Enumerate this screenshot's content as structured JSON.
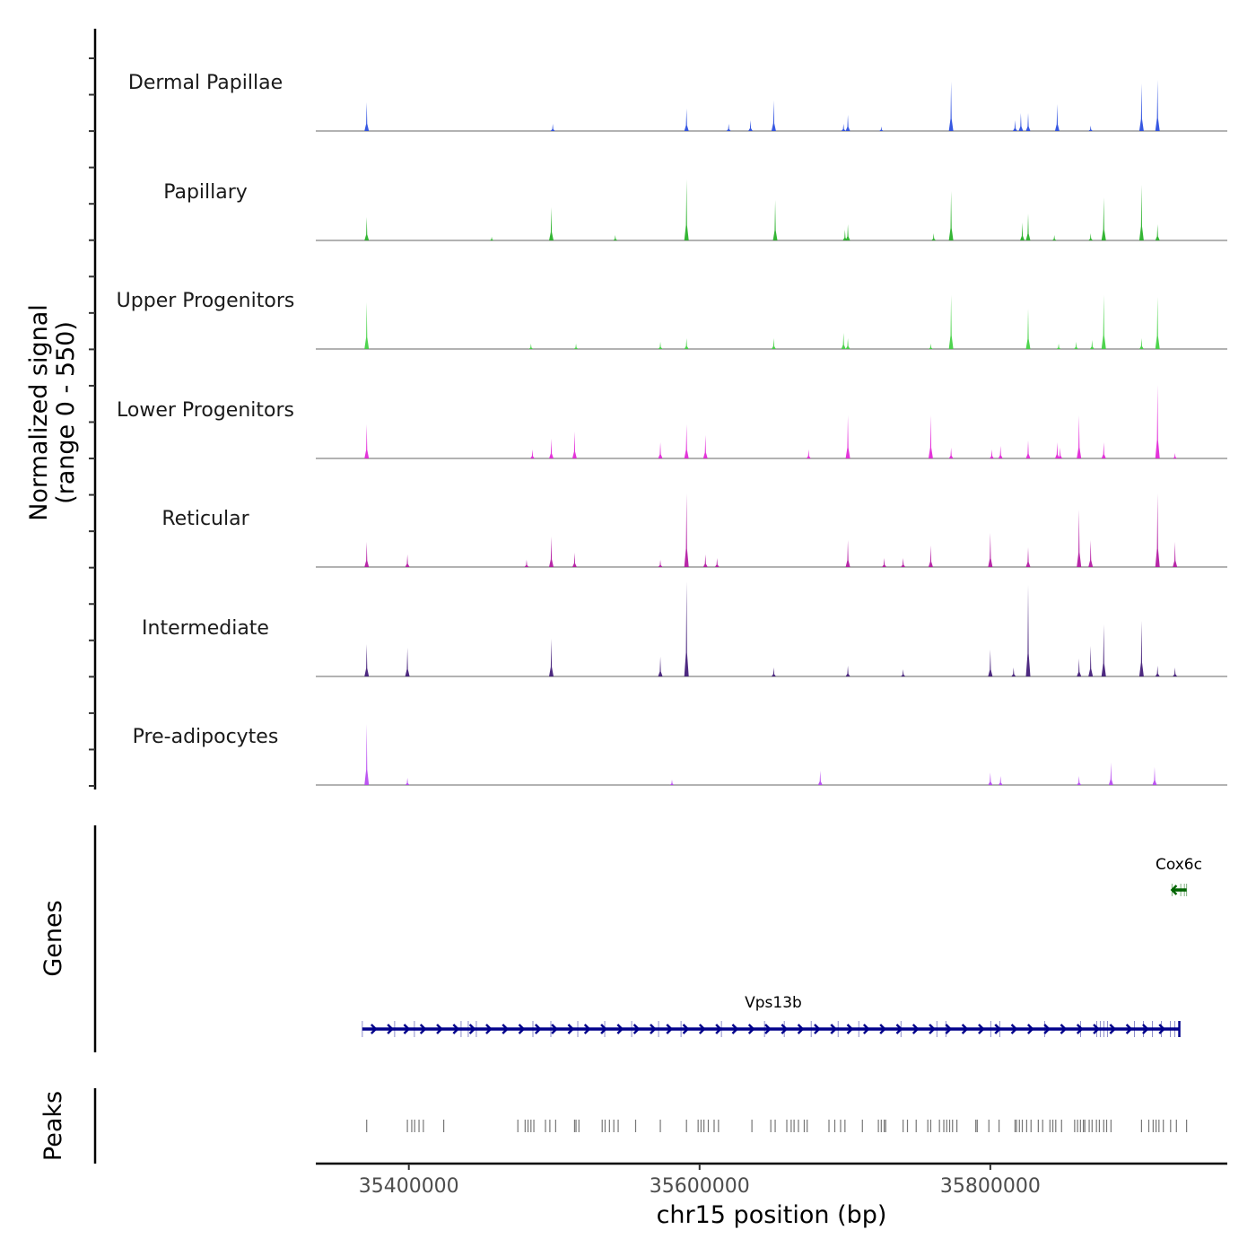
{
  "chart_data": {
    "type": "area",
    "title": "",
    "ylabel_line1": "Normalized signal",
    "ylabel_line2": "(range 0 - 550)",
    "xlabel": "chr15 position (bp)",
    "xlim": [
      35336000,
      35963000
    ],
    "ylim": [
      0,
      550
    ],
    "x_ticks": [
      35400000,
      35600000,
      35800000
    ],
    "x_tick_labels": [
      "35400000",
      "35600000",
      "35800000"
    ],
    "grid": false,
    "tracks": [
      {
        "name": "Dermal Papillae",
        "color": "#2146df",
        "peaks": [
          [
            35371000,
            160
          ],
          [
            35499000,
            40
          ],
          [
            35591000,
            125
          ],
          [
            35620000,
            40
          ],
          [
            35635000,
            60
          ],
          [
            35651000,
            170
          ],
          [
            35699000,
            40
          ],
          [
            35702000,
            90
          ],
          [
            35725000,
            25
          ],
          [
            35773000,
            275
          ],
          [
            35817000,
            60
          ],
          [
            35821000,
            100
          ],
          [
            35826000,
            100
          ],
          [
            35846000,
            150
          ],
          [
            35869000,
            30
          ],
          [
            35904000,
            265
          ],
          [
            35915000,
            285
          ]
        ]
      },
      {
        "name": "Papillary",
        "color": "#1fae1f",
        "peaks": [
          [
            35371000,
            130
          ],
          [
            35457000,
            20
          ],
          [
            35498000,
            185
          ],
          [
            35542000,
            30
          ],
          [
            35591000,
            340
          ],
          [
            35652000,
            225
          ],
          [
            35700000,
            60
          ],
          [
            35702000,
            90
          ],
          [
            35761000,
            40
          ],
          [
            35773000,
            275
          ],
          [
            35822000,
            100
          ],
          [
            35826000,
            150
          ],
          [
            35844000,
            30
          ],
          [
            35869000,
            40
          ],
          [
            35878000,
            240
          ],
          [
            35904000,
            310
          ],
          [
            35915000,
            90
          ]
        ]
      },
      {
        "name": "Upper Progenitors",
        "color": "#3ccf3c",
        "peaks": [
          [
            35371000,
            260
          ],
          [
            35484000,
            30
          ],
          [
            35515000,
            30
          ],
          [
            35573000,
            40
          ],
          [
            35591000,
            60
          ],
          [
            35651000,
            60
          ],
          [
            35699000,
            90
          ],
          [
            35702000,
            60
          ],
          [
            35759000,
            30
          ],
          [
            35773000,
            300
          ],
          [
            35826000,
            225
          ],
          [
            35847000,
            30
          ],
          [
            35859000,
            40
          ],
          [
            35870000,
            50
          ],
          [
            35878000,
            300
          ],
          [
            35904000,
            60
          ],
          [
            35915000,
            290
          ]
        ]
      },
      {
        "name": "Lower Progenitors",
        "color": "#e11fd6",
        "peaks": [
          [
            35371000,
            190
          ],
          [
            35485000,
            50
          ],
          [
            35498000,
            110
          ],
          [
            35514000,
            150
          ],
          [
            35573000,
            90
          ],
          [
            35591000,
            190
          ],
          [
            35604000,
            130
          ],
          [
            35675000,
            50
          ],
          [
            35702000,
            240
          ],
          [
            35759000,
            240
          ],
          [
            35773000,
            60
          ],
          [
            35801000,
            50
          ],
          [
            35807000,
            70
          ],
          [
            35826000,
            100
          ],
          [
            35846000,
            90
          ],
          [
            35848000,
            60
          ],
          [
            35861000,
            240
          ],
          [
            35878000,
            90
          ],
          [
            35915000,
            410
          ],
          [
            35927000,
            30
          ]
        ]
      },
      {
        "name": "Reticular",
        "color": "#b0119e",
        "peaks": [
          [
            35371000,
            140
          ],
          [
            35399000,
            70
          ],
          [
            35481000,
            40
          ],
          [
            35498000,
            170
          ],
          [
            35514000,
            80
          ],
          [
            35573000,
            40
          ],
          [
            35591000,
            410
          ],
          [
            35604000,
            70
          ],
          [
            35612000,
            50
          ],
          [
            35702000,
            150
          ],
          [
            35727000,
            50
          ],
          [
            35740000,
            50
          ],
          [
            35759000,
            120
          ],
          [
            35800000,
            190
          ],
          [
            35826000,
            110
          ],
          [
            35861000,
            320
          ],
          [
            35869000,
            150
          ],
          [
            35915000,
            410
          ],
          [
            35927000,
            140
          ]
        ]
      },
      {
        "name": "Intermediate",
        "color": "#3b1373",
        "peaks": [
          [
            35371000,
            180
          ],
          [
            35399000,
            160
          ],
          [
            35498000,
            210
          ],
          [
            35573000,
            110
          ],
          [
            35591000,
            530
          ],
          [
            35651000,
            50
          ],
          [
            35702000,
            60
          ],
          [
            35740000,
            40
          ],
          [
            35800000,
            150
          ],
          [
            35816000,
            50
          ],
          [
            35826000,
            510
          ],
          [
            35861000,
            100
          ],
          [
            35869000,
            170
          ],
          [
            35878000,
            290
          ],
          [
            35904000,
            310
          ],
          [
            35915000,
            60
          ],
          [
            35927000,
            50
          ]
        ]
      },
      {
        "name": "Pre-adipocytes",
        "color": "#b542ef",
        "peaks": [
          [
            35371000,
            340
          ],
          [
            35399000,
            40
          ],
          [
            35581000,
            30
          ],
          [
            35683000,
            80
          ],
          [
            35800000,
            70
          ],
          [
            35807000,
            50
          ],
          [
            35861000,
            50
          ],
          [
            35883000,
            125
          ],
          [
            35913000,
            100
          ]
        ]
      }
    ],
    "genes": [
      {
        "name": "Vps13b",
        "start": 35368000,
        "end": 35930000,
        "strand": "+",
        "color": "#00008b"
      },
      {
        "name": "Cox6c",
        "start": 35925000,
        "end": 35935000,
        "strand": "-",
        "color": "#006400"
      }
    ],
    "genes_label": "Genes",
    "peaks_label": "Peaks",
    "peak_positions": [
      35371000,
      35399000,
      35402000,
      35404000,
      35407000,
      35410000,
      35424000,
      35475000,
      35480000,
      35482000,
      35484000,
      35486000,
      35494000,
      35497000,
      35501000,
      35514000,
      35515000,
      35517000,
      35533000,
      35535000,
      35538000,
      35541000,
      35544000,
      35556000,
      35573000,
      35591000,
      35599000,
      35601000,
      35603000,
      35606000,
      35610000,
      35613000,
      35636000,
      35649000,
      35652000,
      35660000,
      35663000,
      35665000,
      35668000,
      35672000,
      35674000,
      35689000,
      35693000,
      35697000,
      35700000,
      35712000,
      35723000,
      35725000,
      35727000,
      35728000,
      35740000,
      35743000,
      35749000,
      35757000,
      35759000,
      35765000,
      35768000,
      35770000,
      35772000,
      35774000,
      35777000,
      35790000,
      35791000,
      35799000,
      35806000,
      35817000,
      35818000,
      35820000,
      35822000,
      35825000,
      35828000,
      35833000,
      35836000,
      35841000,
      35843000,
      35845000,
      35849000,
      35858000,
      35860000,
      35862000,
      35864000,
      35865000,
      35868000,
      35870000,
      35873000,
      35875000,
      35878000,
      35880000,
      35883000,
      35904000,
      35909000,
      35912000,
      35914000,
      35916000,
      35919000,
      35924000,
      35928000,
      35935000
    ]
  }
}
